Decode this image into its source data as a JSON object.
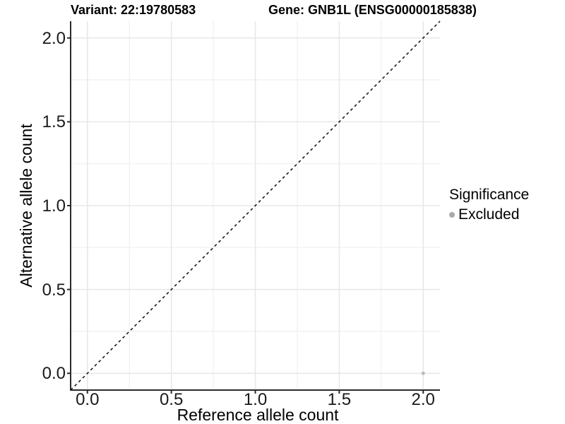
{
  "chart_data": {
    "type": "scatter",
    "title_left": "Variant: 22:19780583",
    "title_right": "Gene: GNB1L (ENSG00000185838)",
    "xlabel": "Reference allele count",
    "ylabel": "Alternative allele count",
    "xlim": [
      -0.1,
      2.1
    ],
    "ylim": [
      -0.1,
      2.1
    ],
    "x_ticks": [
      0.0,
      0.5,
      1.0,
      1.5,
      2.0
    ],
    "y_ticks": [
      0.0,
      0.5,
      1.0,
      1.5,
      2.0
    ],
    "x_tick_labels": [
      "0.0",
      "0.5",
      "1.0",
      "1.5",
      "2.0"
    ],
    "y_tick_labels": [
      "0.0",
      "0.5",
      "1.0",
      "1.5",
      "2.0"
    ],
    "minor_grid_step": 0.25,
    "grid": true,
    "points": [
      {
        "x": 2.0,
        "y": 0.0,
        "series": "Excluded"
      }
    ],
    "reference_line": {
      "type": "identity",
      "slope": 1,
      "intercept": 0,
      "style": "dashed",
      "color": "#000000"
    },
    "legend": {
      "title": "Significance",
      "position": "right",
      "entries": [
        {
          "label": "Excluded",
          "color": "#aaaaaa"
        }
      ]
    },
    "colors": {
      "point": "#b9b9b9",
      "grid_major": "#e8e8e8",
      "grid_minor": "#f3f3f3",
      "axis": "#2b2b2b",
      "tick_label": "#1a1a1a"
    }
  }
}
